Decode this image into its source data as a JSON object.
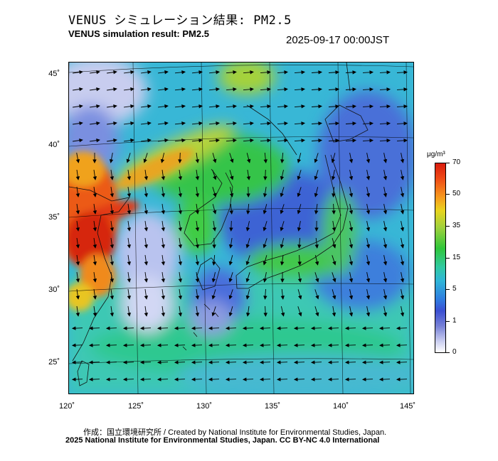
{
  "header": {
    "title_jp": "VENUS シミュレーション結果: PM2.5",
    "title_en": "VENUS simulation result: PM2.5",
    "timestamp": "2025-09-17 00:00JST"
  },
  "map": {
    "region": "East Asia (Japan, Korea, East China)",
    "variable": "PM2.5 concentration with wind vectors",
    "lat_labels": [
      "45˚",
      "40˚",
      "35˚",
      "30˚",
      "25˚"
    ],
    "lon_labels": [
      "120˚",
      "125˚",
      "130˚",
      "135˚",
      "140˚",
      "145˚"
    ]
  },
  "colorbar": {
    "unit": "μg/m³",
    "labels": [
      "70",
      "50",
      "35",
      "15",
      "5",
      "1",
      "0"
    ],
    "colors": [
      "#d91c0e",
      "#f79a1d",
      "#e8d41e",
      "#2fc63a",
      "#30c9a2",
      "#2f7ce0",
      "#7680d6",
      "#ffffff"
    ]
  },
  "footer": {
    "credit_line1": "作成：国立環境研究所 / Created by National Institute for Environmental Studies, Japan.",
    "credit_line2": "2025 National Institute for Environmental Studies, Japan. CC BY-NC 4.0 International"
  }
}
